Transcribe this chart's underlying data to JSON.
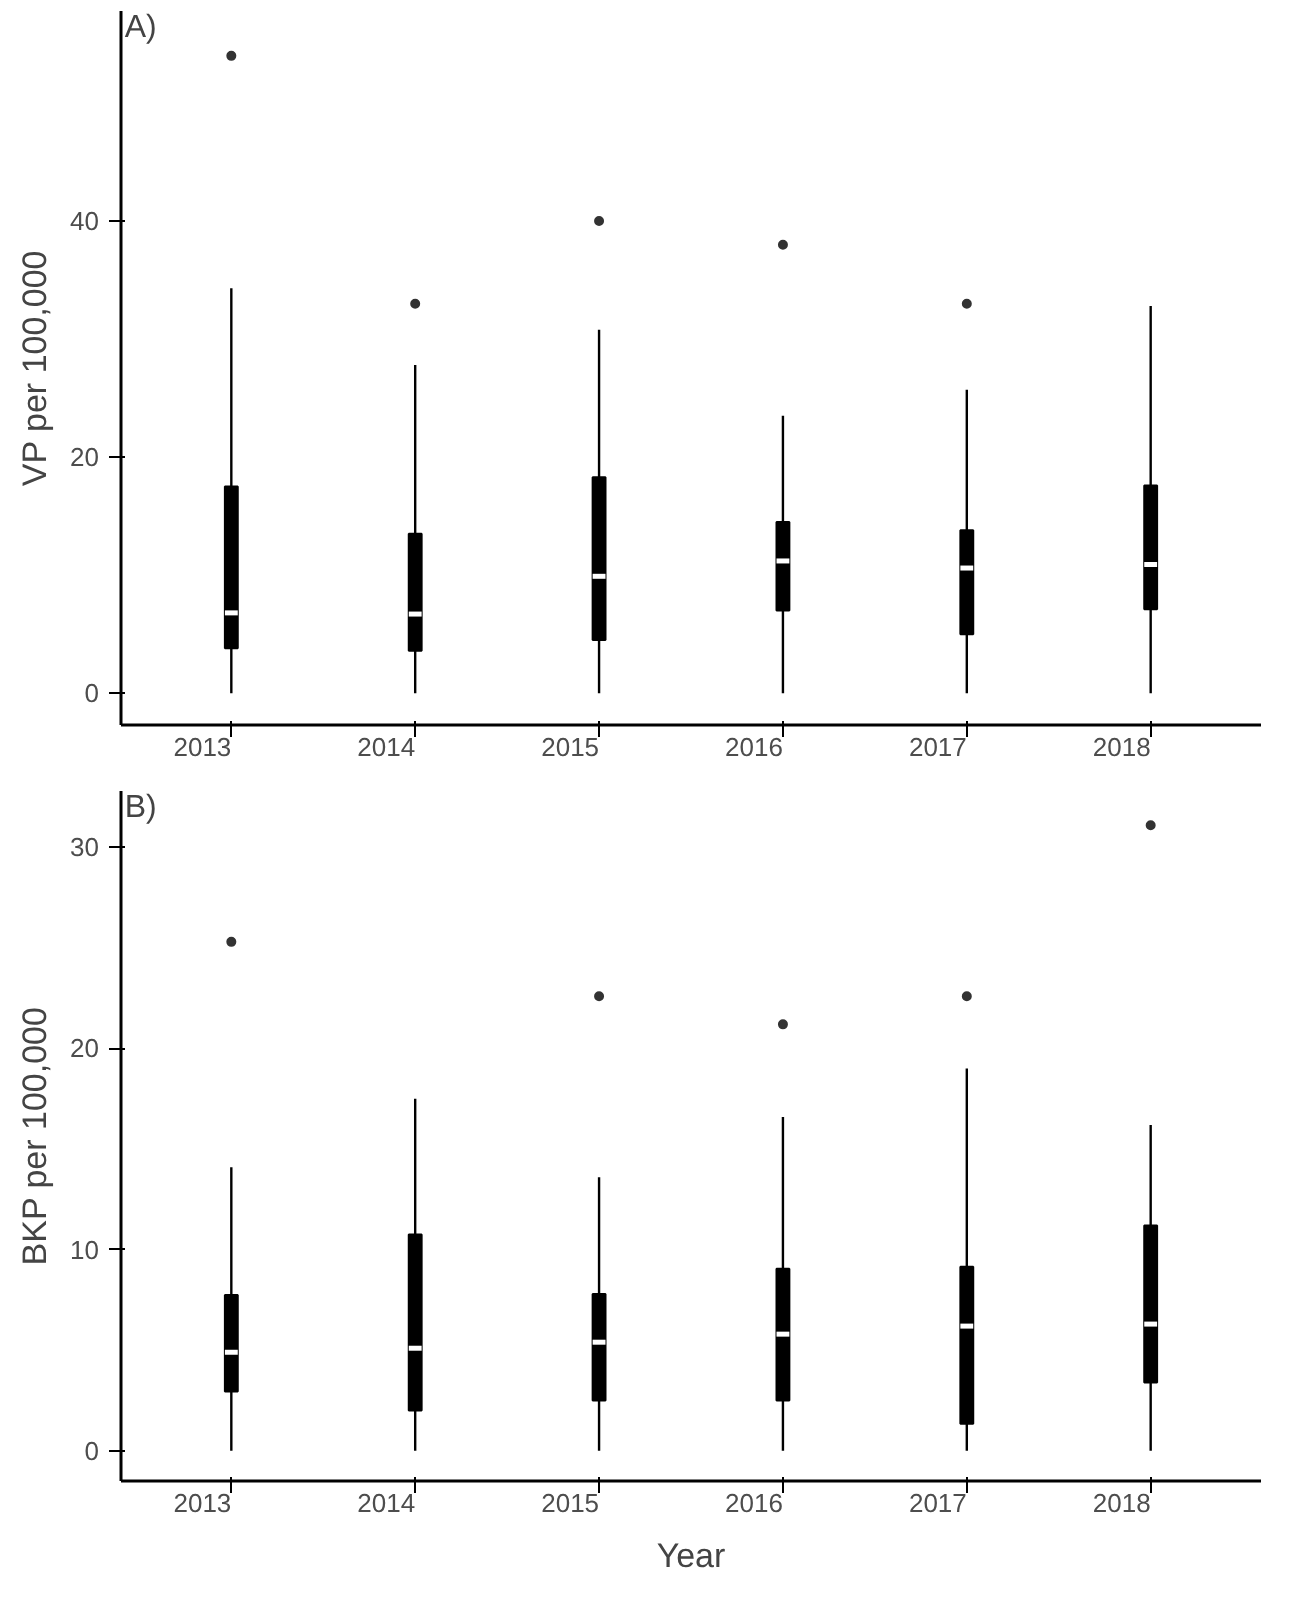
{
  "chart_data": [
    {
      "type": "box",
      "annotations": [
        "A)"
      ],
      "ylabel": "VP per 100,000",
      "categories": [
        "2013",
        "2014",
        "2015",
        "2016",
        "2017",
        "2018"
      ],
      "ylim": [
        -2.7,
        57.8
      ],
      "yticks": [
        0,
        20,
        40
      ],
      "grid": false,
      "color": "#000000",
      "boxes": [
        {
          "low": 0,
          "q1": 3.8,
          "median": 6.8,
          "q3": 17.5,
          "high": 34.3,
          "outliers": [
            54
          ]
        },
        {
          "low": 0,
          "q1": 3.6,
          "median": 6.7,
          "q3": 13.5,
          "high": 27.8,
          "outliers": [
            33
          ]
        },
        {
          "low": 0,
          "q1": 4.5,
          "median": 9.9,
          "q3": 18.3,
          "high": 30.8,
          "outliers": [
            40
          ]
        },
        {
          "low": 0,
          "q1": 7.0,
          "median": 11.2,
          "q3": 14.5,
          "high": 23.5,
          "outliers": [
            38
          ]
        },
        {
          "low": 0,
          "q1": 5.0,
          "median": 10.6,
          "q3": 13.8,
          "high": 25.7,
          "outliers": [
            33
          ]
        },
        {
          "low": 0,
          "q1": 7.1,
          "median": 10.9,
          "q3": 17.6,
          "high": 32.8
        }
      ]
    },
    {
      "type": "box",
      "annotations": [
        "B)"
      ],
      "xlabel": "Year",
      "ylabel": "BKP per 100,000",
      "categories": [
        "2013",
        "2014",
        "2015",
        "2016",
        "2017",
        "2018"
      ],
      "ylim": [
        -1.5,
        32.8
      ],
      "yticks": [
        0,
        10,
        20,
        30
      ],
      "grid": false,
      "color": "#000000",
      "boxes": [
        {
          "low": 0,
          "q1": 2.95,
          "median": 4.9,
          "q3": 7.75,
          "high": 14.1,
          "outliers": [
            25.3
          ]
        },
        {
          "low": 0,
          "q1": 2.0,
          "median": 5.1,
          "q3": 10.75,
          "high": 17.5
        },
        {
          "low": 0,
          "q1": 2.5,
          "median": 5.4,
          "q3": 7.8,
          "high": 13.6,
          "outliers": [
            22.6
          ]
        },
        {
          "low": 0,
          "q1": 2.5,
          "median": 5.8,
          "q3": 9.05,
          "high": 16.6,
          "outliers": [
            21.2
          ]
        },
        {
          "low": 0,
          "q1": 1.35,
          "median": 6.2,
          "q3": 9.15,
          "high": 19.0,
          "outliers": [
            22.6
          ]
        },
        {
          "low": 0,
          "q1": 3.4,
          "median": 6.3,
          "q3": 11.2,
          "high": 16.2,
          "outliers": [
            31.1
          ]
        }
      ]
    }
  ]
}
